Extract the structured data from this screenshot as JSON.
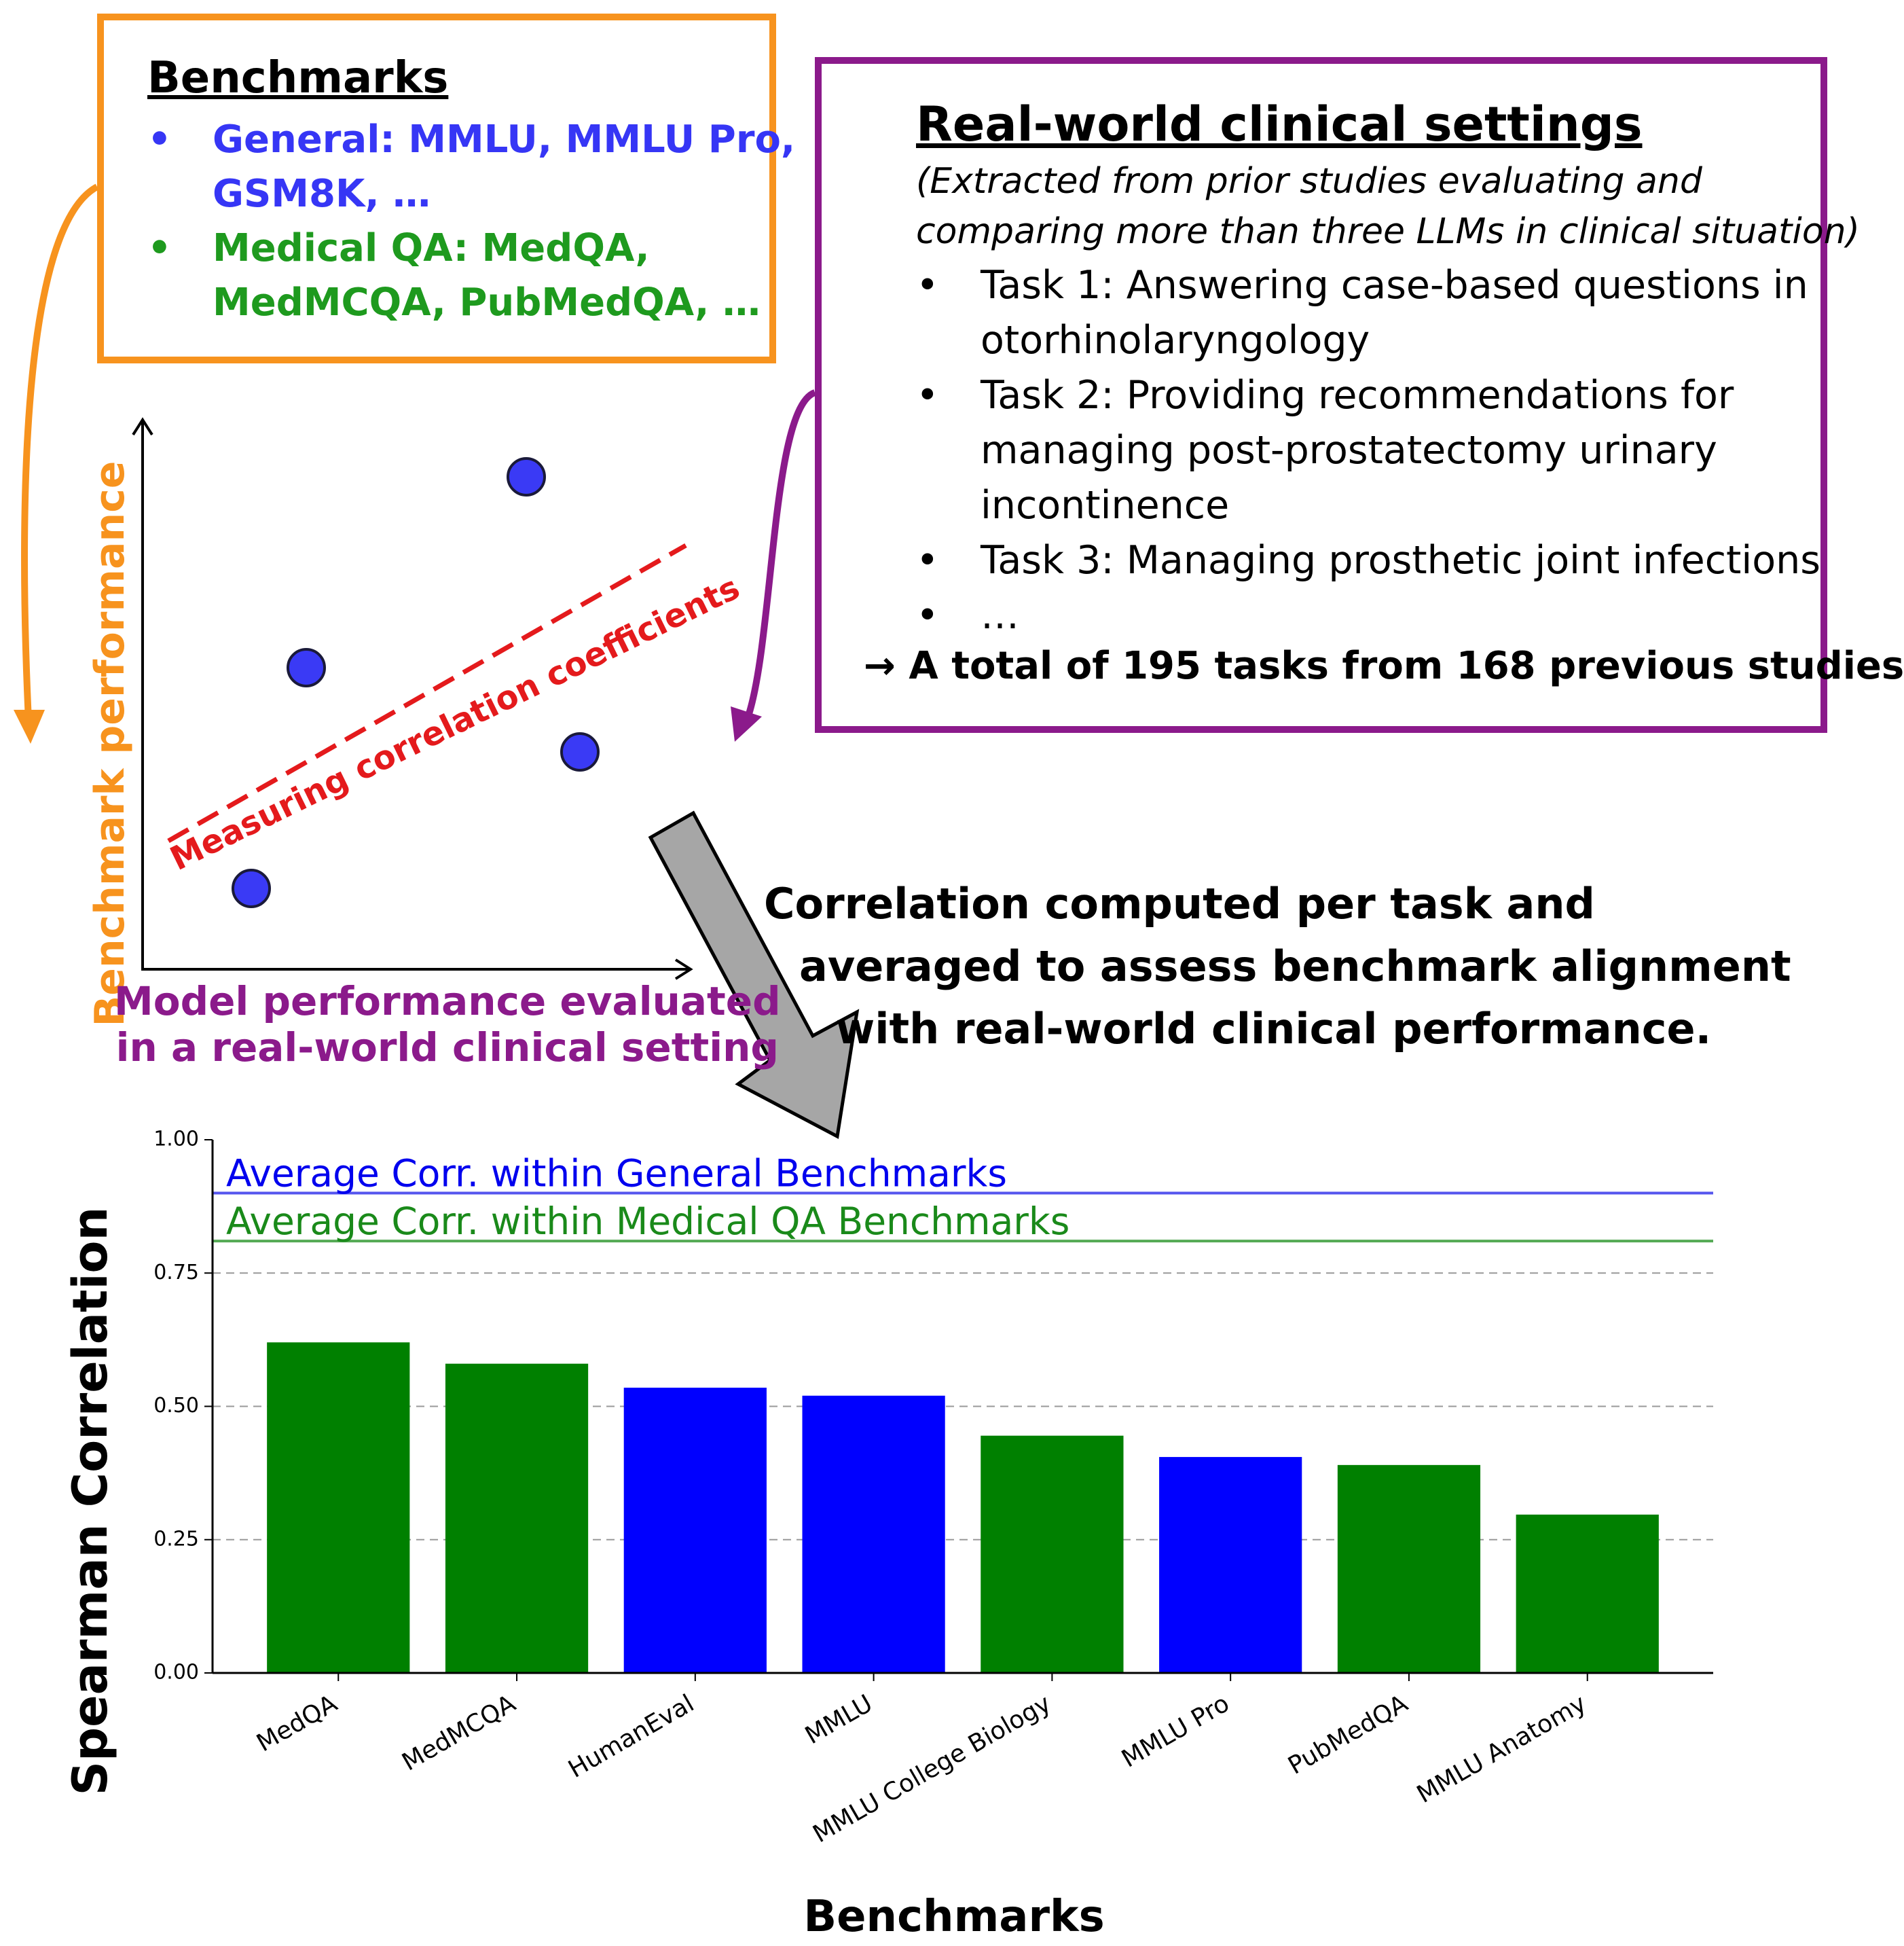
{
  "benchmarks_box": {
    "title": "Benchmarks",
    "bullet": "•",
    "general_label": "General: MMLU, MMLU Pro,",
    "general_cont": "GSM8K, …",
    "medical_label": "Medical QA: MedQA,",
    "medical_cont": "MedMCQA, PubMedQA, …",
    "colors": {
      "border": "#f7931e",
      "general": "#3636f5",
      "medical": "#1e9a1e"
    }
  },
  "realworld_box": {
    "title": "Real-world clinical settings",
    "subtitle_line1": "(Extracted from prior studies evaluating and",
    "subtitle_line2": "comparing more than three LLMs in clinical situation)",
    "bullet": "•",
    "tasks": [
      {
        "line1": "Task 1: Answering case-based questions in",
        "line2": "otorhinolaryngology"
      },
      {
        "line1": "Task 2: Providing recommendations for",
        "line2": "managing post-prostatectomy urinary",
        "line3": "incontinence"
      },
      {
        "line1": "Task 3: Managing prosthetic joint infections"
      },
      {
        "line1": "…"
      }
    ],
    "total": "→ A total of 195 tasks from 168 previous studies",
    "border_color": "#8b1a8b"
  },
  "scatter": {
    "ylabel": "Benchmark performance",
    "xlabel_line1": "Model performance evaluated",
    "xlabel_line2": "in a real-world clinical setting",
    "trend_label": "Measuring correlation coefficients",
    "point_color": "#3a3af5"
  },
  "description": {
    "line1": "Correlation computed per task and",
    "line2": "averaged to assess benchmark alignment",
    "line3": "with real-world clinical performance."
  },
  "chart_data": {
    "type": "bar",
    "categories": [
      "MedQA",
      "MedMCQA",
      "HumanEval",
      "MMLU",
      "MMLU College Biology",
      "MMLU Pro",
      "PubMedQA",
      "MMLU Anatomy"
    ],
    "values": [
      0.62,
      0.58,
      0.535,
      0.52,
      0.445,
      0.405,
      0.39,
      0.297
    ],
    "bar_groups": [
      "Medical QA",
      "Medical QA",
      "General",
      "General",
      "Medical QA",
      "General",
      "Medical QA",
      "Medical QA"
    ],
    "group_colors": {
      "General": "#0000ff",
      "Medical QA": "#008000"
    },
    "reference_lines": [
      {
        "label": "Average Corr. within General Benchmarks",
        "value": 0.9,
        "color": "#5555ee",
        "text_color": "#0000ee"
      },
      {
        "label": "Average Corr. within Medical QA Benchmarks",
        "value": 0.81,
        "color": "#55aa55",
        "text_color": "#1a8a1a"
      }
    ],
    "ylim": [
      0,
      1.0
    ],
    "yticks": [
      0.0,
      0.25,
      0.5,
      0.75,
      1.0
    ],
    "ytick_labels": [
      "0.00",
      "0.25",
      "0.50",
      "0.75",
      "1.00"
    ],
    "grid": "horizontal dashed",
    "xlabel": "Benchmarks",
    "ylabel": "Spearman Correlation"
  }
}
